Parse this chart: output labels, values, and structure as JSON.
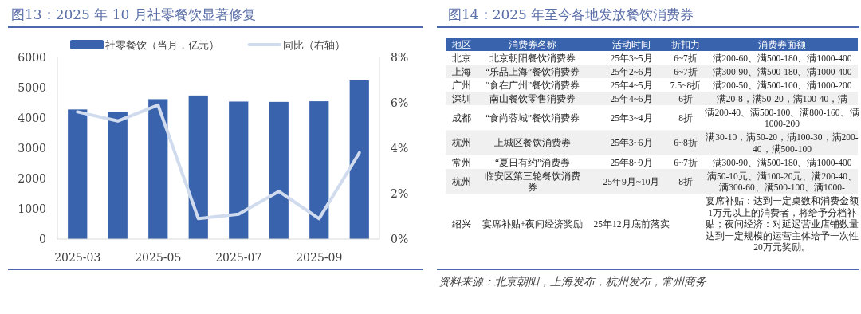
{
  "chart_data": [
    {
      "type": "bar",
      "title": "图13：2025 年 10 月社零餐饮显著修复",
      "categories": [
        "2025-03",
        null,
        "2025-05",
        null,
        "2025-07",
        null,
        "2025-09",
        null
      ],
      "series": [
        {
          "name": "社零餐饮（当月，亿元）",
          "type": "bar",
          "color": "#3a63ad",
          "values": [
            4280,
            4200,
            4620,
            4740,
            4540,
            4530,
            4550,
            5240
          ]
        },
        {
          "name": "同比（右轴）",
          "type": "line",
          "axis": "y2",
          "color": "#d0dcee",
          "values": [
            5.6,
            5.2,
            5.9,
            0.9,
            1.1,
            2.1,
            0.9,
            3.8
          ]
        }
      ],
      "ylim": [
        0,
        6000
      ],
      "yticks": [
        0,
        1000,
        2000,
        3000,
        4000,
        5000,
        6000
      ],
      "y2lim": [
        0,
        8
      ],
      "y2ticks": [
        {
          "value": 0,
          "label": "0%"
        },
        {
          "value": 2,
          "label": "2%"
        },
        {
          "value": 4,
          "label": "4%"
        },
        {
          "value": 6,
          "label": "6%"
        },
        {
          "value": 8,
          "label": "8%"
        }
      ],
      "legend": "top",
      "grid": false
    },
    {
      "type": "other",
      "title": "图14：2025 年至今各地发放餐饮消费券",
      "categories": [
        "地区",
        "消费券名称",
        "活动时间",
        "折扣力",
        "消费券面额"
      ],
      "y_categories": [
        "北京",
        "上海",
        "广州",
        "深圳",
        "成都",
        "杭州",
        "常州",
        "杭州",
        "绍兴"
      ],
      "cell_labels": [
        [
          "北京朝阳餐饮消费券",
          "25年3~5月",
          "6~7折",
          "满200-60、满500-180、满1000-400"
        ],
        [
          "“乐品上海”餐饮消费券",
          "25年2~6月",
          "6~7折",
          "满300-90、满500-180、满1000-400"
        ],
        [
          "“食在广州”餐饮消费券",
          "25年4~5月",
          "7.5~8折",
          "满200-50、满500-100、满1000-200"
        ],
        [
          "南山餐饮零售消费券",
          "25年4~6月",
          "6折",
          "满20-8，满50-20，满100-40，满"
        ],
        [
          "“食尚蓉城”餐饮消费券",
          "25年3~4月",
          "8折",
          "满200-40、满500-100、满800-160、满1000-200"
        ],
        [
          "上城区餐饮消费券",
          "25年3~6月",
          "6~8折",
          "满30-10，满50-20，满100-30，满200-40，满500-100"
        ],
        [
          "“夏日有约”消费券",
          "25年8~9月",
          "6~7折",
          "满300-90、满500-180、满1000-400"
        ],
        [
          "临安区第三轮餐饮消费券",
          "25年9月~10月",
          "8折",
          "满50-10元、满100-20元、满200-40、满300-60、满500-100、满1000-"
        ],
        [
          "宴席补贴+夜间经济奖励",
          "25年12月底前落实",
          null,
          "宴席补贴：达到一定桌数和消费金额1万元以上的消费者，将给予分档补贴；夜间经济：对延迟营业店铺数量达到一定规模的运营主体给予一次性20万元奖励。"
        ]
      ],
      "annotations": [
        "资料来源：北京朝阳，上海发布，杭州发布，常州商务"
      ]
    }
  ]
}
